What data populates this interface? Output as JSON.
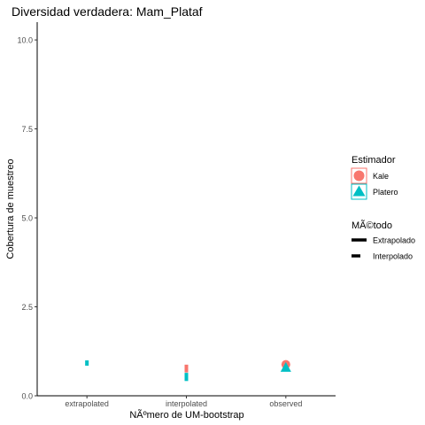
{
  "chart_data": {
    "type": "scatter",
    "title": "Diversidad verdadera: Mam_Plataf",
    "xlabel": "NÃºmero de UM-bootstrap",
    "ylabel": "Cobertura de muestreo",
    "categories": [
      "extrapolated",
      "interpolated",
      "observed"
    ],
    "y_ticks": [
      "0.0",
      "2.5",
      "5.0",
      "7.5",
      "10.0"
    ],
    "ylim": [
      0,
      10.5
    ],
    "grid": false,
    "legend_position": "right",
    "legends": [
      {
        "title": "Estimador",
        "items": [
          {
            "label": "Kale",
            "color": "#F8766D",
            "shape": "circle"
          },
          {
            "label": "Platero",
            "color": "#00BFC4",
            "shape": "triangle"
          }
        ]
      },
      {
        "title": "MÃ©todo",
        "items": [
          {
            "label": "Extrapolado",
            "line": "solid"
          },
          {
            "label": "Interpolado",
            "line": "dashed"
          }
        ]
      }
    ],
    "series": [
      {
        "name": "Kale",
        "color": "#F8766D",
        "points": [
          {
            "x": "interpolated",
            "y": 0.73,
            "method": "Interpolado"
          },
          {
            "x": "interpolated",
            "y": 0.8,
            "method": "Interpolado"
          },
          {
            "x": "observed",
            "y": 0.88,
            "shape": "circle"
          }
        ]
      },
      {
        "name": "Platero",
        "color": "#00BFC4",
        "points": [
          {
            "x": "extrapolated",
            "y": 0.92,
            "method": "Extrapolado"
          },
          {
            "x": "interpolated",
            "y": 0.49,
            "method": "Interpolado"
          },
          {
            "x": "interpolated",
            "y": 0.57,
            "method": "Interpolado"
          },
          {
            "x": "observed",
            "y": 0.8,
            "shape": "triangle"
          }
        ]
      }
    ]
  }
}
